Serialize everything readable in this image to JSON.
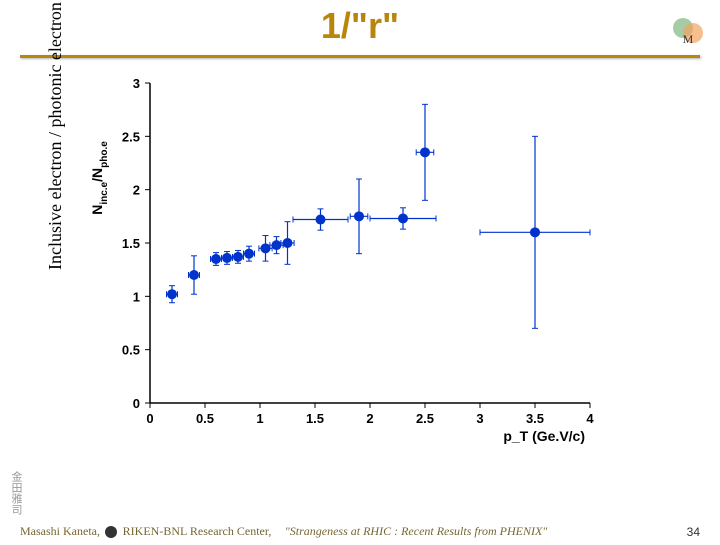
{
  "title": "1/\"r\"",
  "ylabel_rotated": "Inclusive electron / photonic electron",
  "xlabel": "p_T (Ge.V/c)",
  "axis_ylabel": "N_inc.e / N_pho.e",
  "footer": {
    "author": "Masashi Kaneta,",
    "affiliation": "RIKEN-BNL Research Center,",
    "talk": "\"Strangeness at RHIC : Recent Results from PHENIX\"",
    "page": "34"
  },
  "kanji": "金田雅司",
  "chart": {
    "type": "scatter",
    "xlim": [
      0,
      4
    ],
    "ylim": [
      0,
      3
    ],
    "xtick_step": 0.5,
    "ytick_step": 0.5,
    "background_color": "#ffffff",
    "axis_color": "#000000",
    "marker_color": "#0033cc",
    "marker_size": 5,
    "label_fontsize": 14,
    "tick_fontsize": 13,
    "points": [
      {
        "x": 0.2,
        "y": 1.02,
        "ex": 0.05,
        "ey": 0.08
      },
      {
        "x": 0.4,
        "y": 1.2,
        "ex": 0.05,
        "ey": 0.18
      },
      {
        "x": 0.6,
        "y": 1.35,
        "ex": 0.05,
        "ey": 0.06
      },
      {
        "x": 0.7,
        "y": 1.36,
        "ex": 0.05,
        "ey": 0.06
      },
      {
        "x": 0.8,
        "y": 1.37,
        "ex": 0.05,
        "ey": 0.06
      },
      {
        "x": 0.9,
        "y": 1.4,
        "ex": 0.05,
        "ey": 0.07
      },
      {
        "x": 1.05,
        "y": 1.45,
        "ex": 0.06,
        "ey": 0.12
      },
      {
        "x": 1.15,
        "y": 1.48,
        "ex": 0.06,
        "ey": 0.08
      },
      {
        "x": 1.25,
        "y": 1.5,
        "ex": 0.06,
        "ey": 0.2
      },
      {
        "x": 1.55,
        "y": 1.72,
        "ex": 0.25,
        "ey": 0.1
      },
      {
        "x": 1.9,
        "y": 1.75,
        "ex": 0.08,
        "ey": 0.35
      },
      {
        "x": 2.3,
        "y": 1.73,
        "ex": 0.3,
        "ey": 0.1
      },
      {
        "x": 2.5,
        "y": 2.35,
        "ex": 0.08,
        "ey": 0.45
      },
      {
        "x": 3.5,
        "y": 1.6,
        "ex": 0.5,
        "ey": 0.9
      }
    ]
  },
  "colors": {
    "title_color": "#b8860b",
    "divider_color": "#b8860b",
    "footer_color": "#776633"
  }
}
